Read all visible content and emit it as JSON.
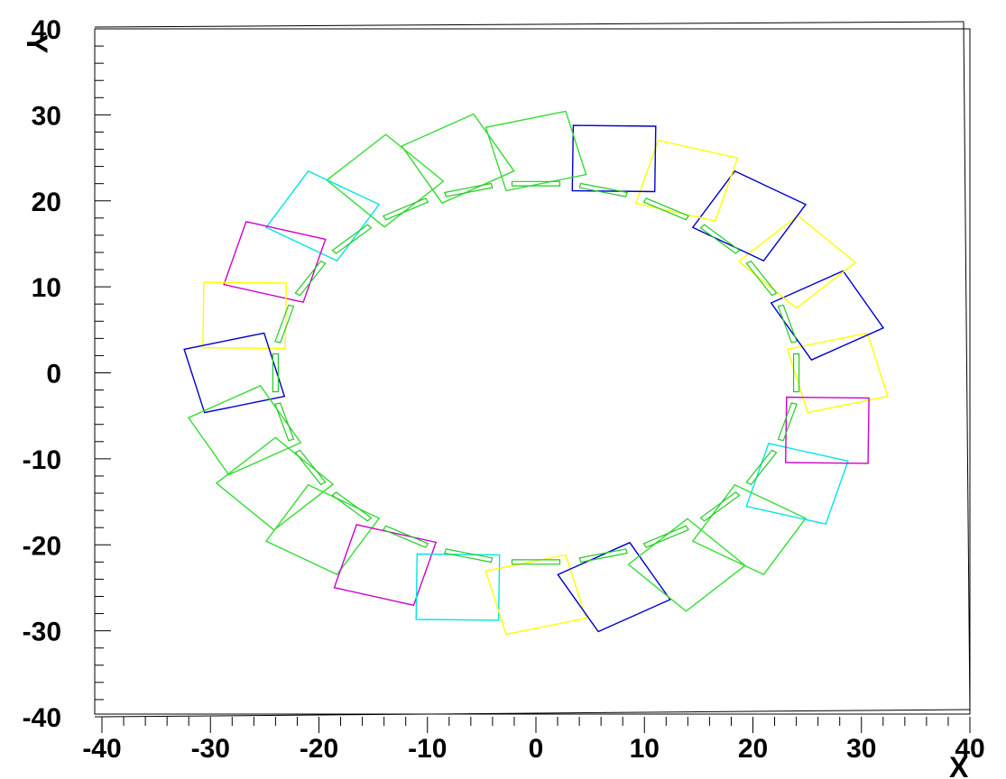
{
  "chart_data": {
    "type": "diagram",
    "xlabel": "X",
    "ylabel": "Y",
    "xlim": [
      -40,
      40
    ],
    "ylim": [
      -40,
      40
    ],
    "x_ticks": [
      -40,
      -30,
      -20,
      -10,
      0,
      10,
      20,
      30,
      40
    ],
    "y_ticks": [
      -40,
      -30,
      -20,
      -10,
      0,
      10,
      20,
      30,
      40
    ],
    "x_tick_labels": [
      "-40",
      "-30",
      "-20",
      "-10",
      "0",
      "10",
      "20",
      "30",
      "40"
    ],
    "y_tick_labels": [
      "-40",
      "-30",
      "-20",
      "-10",
      "0",
      "10",
      "20",
      "30",
      "40"
    ],
    "ring": {
      "modules": 24,
      "center": [
        0,
        0
      ],
      "radius_x": 24,
      "radius_y": 22,
      "module_half_size": 3.8,
      "sensor_half_length": 2.2,
      "module_colors": [
        "#ffff00",
        "#0000cc",
        "#ffff00",
        "#0000cc",
        "#ffff00",
        "#0000cc",
        "#33dd33",
        "#33dd33",
        "#33dd33",
        "#00e5e5",
        "#cc00cc",
        "#ffff00",
        "#0000cc",
        "#33dd33",
        "#33dd33",
        "#33dd33",
        "#cc00cc",
        "#00e5e5",
        "#ffff00",
        "#0000cc",
        "#33dd33",
        "#33dd33",
        "#00e5e5",
        "#cc00cc"
      ]
    }
  }
}
